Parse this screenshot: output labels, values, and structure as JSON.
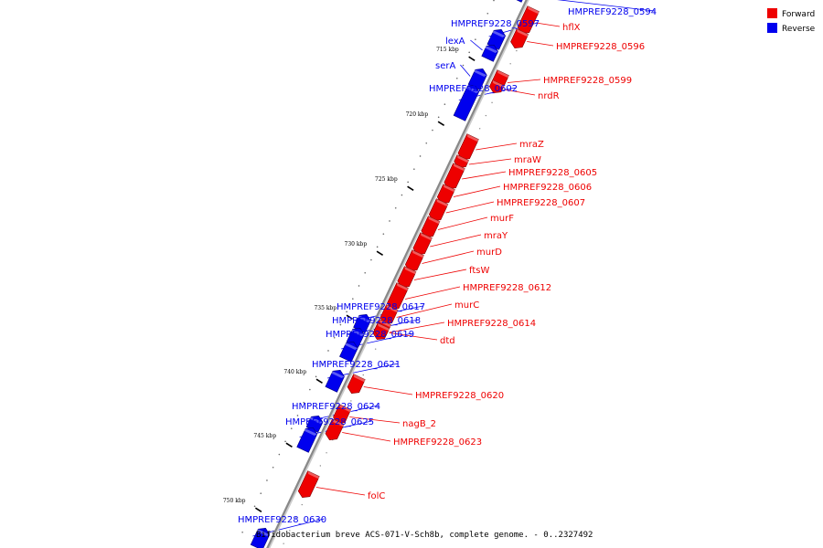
{
  "caption": "Bifidobacterium breve ACS-071-V-Sch8b, complete genome. - 0..2327492",
  "legend": [
    {
      "label": "Forward",
      "color": "#ee0000"
    },
    {
      "label": "Reverse",
      "color": "#0000ee"
    }
  ],
  "colors": {
    "forward": "#ee0000",
    "reverse": "#0000ee",
    "backbone": "#888888"
  },
  "position_unit": "kbp",
  "tick_labels": [
    "715 kbp",
    "720 kbp",
    "725 kbp",
    "730 kbp",
    "735 kbp",
    "740 kbp",
    "745 kbp",
    "750 kbp"
  ],
  "genes": [
    {
      "name": "HMPREF9228_0594",
      "strand": "reverse"
    },
    {
      "name": "hflX",
      "strand": "forward"
    },
    {
      "name": "HMPREF9228_0597",
      "strand": "reverse"
    },
    {
      "name": "lexA",
      "strand": "reverse"
    },
    {
      "name": "HMPREF9228_0596",
      "strand": "forward"
    },
    {
      "name": "serA",
      "strand": "reverse"
    },
    {
      "name": "HMPREF9228_0599",
      "strand": "forward"
    },
    {
      "name": "HMPREF9228_0602",
      "strand": "reverse"
    },
    {
      "name": "nrdR",
      "strand": "forward"
    },
    {
      "name": "mraZ",
      "strand": "forward"
    },
    {
      "name": "mraW",
      "strand": "forward"
    },
    {
      "name": "HMPREF9228_0605",
      "strand": "forward"
    },
    {
      "name": "HMPREF9228_0606",
      "strand": "forward"
    },
    {
      "name": "HMPREF9228_0607",
      "strand": "forward"
    },
    {
      "name": "murF",
      "strand": "forward"
    },
    {
      "name": "mraY",
      "strand": "forward"
    },
    {
      "name": "murD",
      "strand": "forward"
    },
    {
      "name": "ftsW",
      "strand": "forward"
    },
    {
      "name": "HMPREF9228_0612",
      "strand": "forward"
    },
    {
      "name": "murC",
      "strand": "forward"
    },
    {
      "name": "HMPREF9228_0617",
      "strand": "reverse"
    },
    {
      "name": "HMPREF9228_0618",
      "strand": "reverse"
    },
    {
      "name": "HMPREF9228_0614",
      "strand": "forward"
    },
    {
      "name": "HMPREF9228_0619",
      "strand": "reverse"
    },
    {
      "name": "dtd",
      "strand": "forward"
    },
    {
      "name": "HMPREF9228_0621",
      "strand": "reverse"
    },
    {
      "name": "HMPREF9228_0620",
      "strand": "forward"
    },
    {
      "name": "HMPREF9228_0624",
      "strand": "reverse"
    },
    {
      "name": "nagB_2",
      "strand": "forward"
    },
    {
      "name": "HMPREF9228_0625",
      "strand": "reverse"
    },
    {
      "name": "HMPREF9228_0623",
      "strand": "forward"
    },
    {
      "name": "folC",
      "strand": "forward"
    },
    {
      "name": "HMPREF9228_0630",
      "strand": "reverse"
    }
  ]
}
